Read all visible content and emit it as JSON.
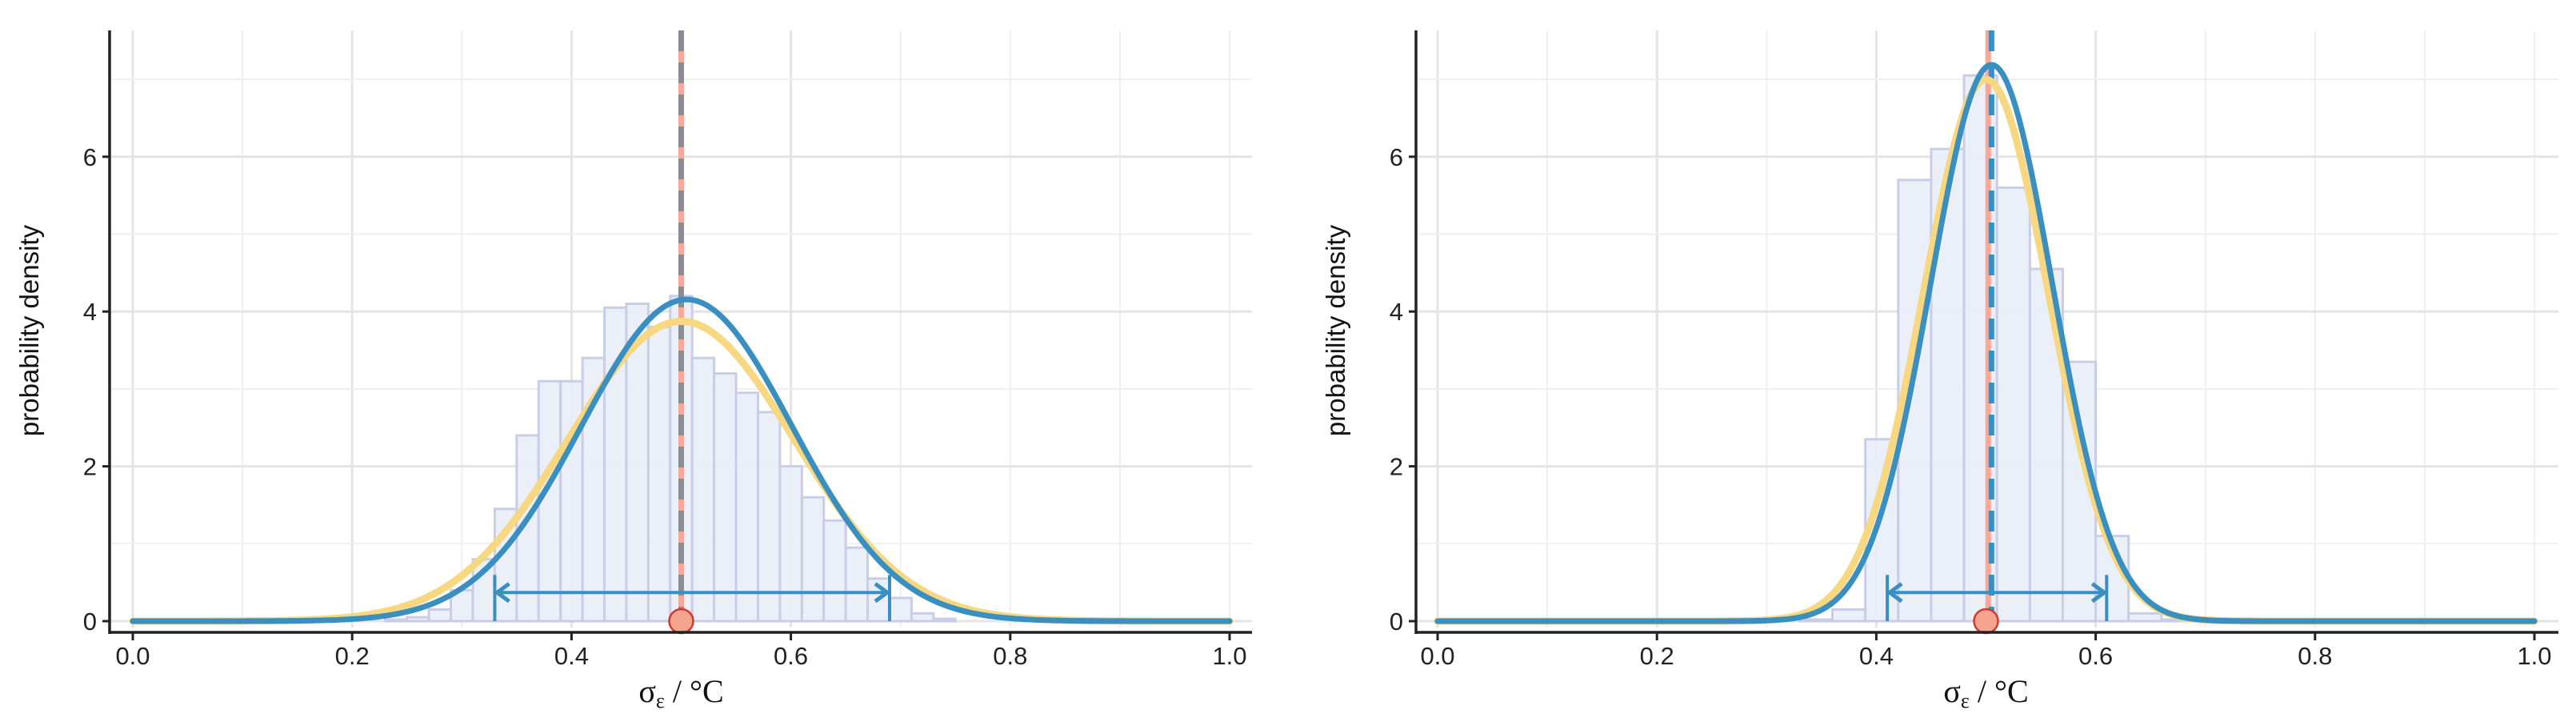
{
  "figure": {
    "panel_count": 2
  },
  "chart_data": [
    {
      "type": "histogram_density",
      "xlabel": {
        "sym": "σ",
        "sub": "ε",
        "unit": " / °C"
      },
      "ylabel": "probability density",
      "xlim": [
        0,
        1
      ],
      "ylim": [
        0,
        7.5
      ],
      "xticks": [
        0.0,
        0.2,
        0.4,
        0.6,
        0.8,
        1.0
      ],
      "xtick_labels": [
        "0.0",
        "0.2",
        "0.4",
        "0.6",
        "0.8",
        "1.0"
      ],
      "yticks": [
        0,
        2,
        4,
        6
      ],
      "ytick_labels": [
        "0",
        "2",
        "4",
        "6"
      ],
      "grid": true,
      "histogram": {
        "bin_width": 0.02,
        "bin_starts": [
          0.23,
          0.25,
          0.27,
          0.29,
          0.31,
          0.33,
          0.35,
          0.37,
          0.39,
          0.41,
          0.43,
          0.45,
          0.47,
          0.49,
          0.51,
          0.53,
          0.55,
          0.57,
          0.59,
          0.61,
          0.63,
          0.65,
          0.67,
          0.69,
          0.71,
          0.73
        ],
        "heights": [
          0.02,
          0.05,
          0.15,
          0.4,
          0.8,
          1.45,
          2.4,
          3.1,
          3.1,
          3.4,
          4.05,
          4.1,
          3.8,
          4.2,
          3.4,
          3.2,
          2.95,
          2.7,
          2.0,
          1.6,
          1.3,
          0.95,
          0.55,
          0.3,
          0.1,
          0.03
        ]
      },
      "curves": [
        {
          "name": "yellow",
          "color": "#f7d77f",
          "mean": 0.5,
          "sd": 0.103,
          "width": 9
        },
        {
          "name": "blue",
          "color": "#3a8fc1",
          "mean": 0.505,
          "sd": 0.096,
          "width": 7
        }
      ],
      "vlines": [
        {
          "x": 0.5,
          "color": "#f4a99a",
          "style": "solid",
          "width": 7
        },
        {
          "x": 0.5,
          "color": "#8a8e93",
          "style": "dashed",
          "width": 7
        }
      ],
      "interval": {
        "lo": 0.33,
        "hi": 0.69,
        "y": 0.37,
        "color": "#3a8fc1"
      },
      "true_value": {
        "x": 0.5,
        "y": 0,
        "fill": "#f4a48f",
        "stroke": "#cf3a2e"
      }
    },
    {
      "type": "histogram_density",
      "xlabel": {
        "sym": "σ",
        "sub": "ε",
        "unit": " / °C"
      },
      "ylabel": "probability density",
      "xlim": [
        0,
        1
      ],
      "ylim": [
        0,
        7.5
      ],
      "xticks": [
        0.0,
        0.2,
        0.4,
        0.6,
        0.8,
        1.0
      ],
      "xtick_labels": [
        "0.0",
        "0.2",
        "0.4",
        "0.6",
        "0.8",
        "1.0"
      ],
      "yticks": [
        0,
        2,
        4,
        6
      ],
      "ytick_labels": [
        "0",
        "2",
        "4",
        "6"
      ],
      "grid": true,
      "histogram": {
        "bin_width": 0.03,
        "bin_starts": [
          0.33,
          0.36,
          0.39,
          0.42,
          0.45,
          0.48,
          0.51,
          0.54,
          0.57,
          0.6,
          0.63,
          0.66
        ],
        "heights": [
          0.02,
          0.15,
          2.35,
          5.7,
          6.1,
          7.05,
          5.6,
          4.55,
          3.35,
          1.1,
          0.1,
          0.02
        ]
      },
      "curves": [
        {
          "name": "yellow",
          "color": "#f7d77f",
          "mean": 0.5,
          "sd": 0.057,
          "width": 9
        },
        {
          "name": "blue",
          "color": "#3a8fc1",
          "mean": 0.505,
          "sd": 0.0555,
          "width": 7
        }
      ],
      "vlines": [
        {
          "x": 0.502,
          "color": "#f4a99a",
          "style": "solid",
          "width": 7
        },
        {
          "x": 0.505,
          "color": "#3a8fc1",
          "style": "dashed",
          "width": 7
        }
      ],
      "interval": {
        "lo": 0.41,
        "hi": 0.61,
        "y": 0.37,
        "color": "#3a8fc1"
      },
      "true_value": {
        "x": 0.5,
        "y": 0,
        "fill": "#f4a48f",
        "stroke": "#cf3a2e"
      }
    }
  ]
}
